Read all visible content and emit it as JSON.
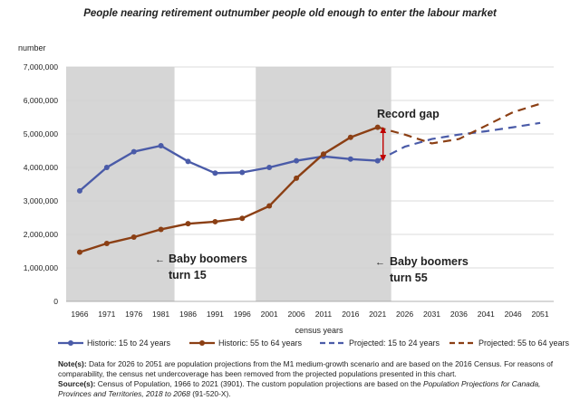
{
  "title": "People nearing retirement outnumber people old enough to enter the labour market",
  "chart_data": {
    "type": "line",
    "ylabel": "number",
    "xlabel": "census years",
    "ylim": [
      0,
      7000000
    ],
    "yticks": [
      0,
      1000000,
      2000000,
      3000000,
      4000000,
      5000000,
      6000000,
      7000000
    ],
    "ytick_labels": [
      "0",
      "1,000,000",
      "2,000,000",
      "3,000,000",
      "4,000,000",
      "5,000,000",
      "6,000,000",
      "7,000,000"
    ],
    "categories": [
      "1966",
      "1971",
      "1976",
      "1981",
      "1986",
      "1991",
      "1996",
      "2001",
      "2006",
      "2011",
      "2016",
      "2021",
      "2026",
      "2031",
      "2036",
      "2041",
      "2046",
      "2051"
    ],
    "shaded_ranges": [
      [
        "1966",
        "1981"
      ],
      [
        "2001",
        "2021"
      ]
    ],
    "series": [
      {
        "name": "Historic: 15 to 24 years",
        "color": "#4a5ba8",
        "dash": false,
        "x": [
          "1966",
          "1971",
          "1976",
          "1981",
          "1986",
          "1991",
          "1996",
          "2001",
          "2006",
          "2011",
          "2016",
          "2021"
        ],
        "values": [
          3300000,
          4000000,
          4470000,
          4650000,
          4180000,
          3830000,
          3850000,
          4000000,
          4200000,
          4330000,
          4250000,
          4200000
        ]
      },
      {
        "name": "Historic: 55 to 64 years",
        "color": "#8b3f14",
        "dash": false,
        "x": [
          "1966",
          "1971",
          "1976",
          "1981",
          "1986",
          "1991",
          "1996",
          "2001",
          "2006",
          "2011",
          "2016",
          "2021"
        ],
        "values": [
          1470000,
          1730000,
          1920000,
          2150000,
          2320000,
          2380000,
          2480000,
          2850000,
          3680000,
          4400000,
          4900000,
          5200000
        ]
      },
      {
        "name": "Projected: 15 to 24 years",
        "color": "#4a5ba8",
        "dash": true,
        "x": [
          "2021",
          "2026",
          "2031",
          "2036",
          "2041",
          "2046",
          "2051"
        ],
        "values": [
          4200000,
          4620000,
          4850000,
          4980000,
          5080000,
          5200000,
          5330000
        ]
      },
      {
        "name": "Projected: 55 to 64 years",
        "color": "#8b3f14",
        "dash": true,
        "x": [
          "2021",
          "2026",
          "2031",
          "2036",
          "2041",
          "2046",
          "2051"
        ],
        "values": [
          5200000,
          4980000,
          4720000,
          4850000,
          5250000,
          5650000,
          5900000
        ]
      }
    ],
    "annotations": {
      "record_gap": "Record gap",
      "boomers_15": [
        "Baby boomers",
        "turn 15"
      ],
      "boomers_55": [
        "Baby boomers",
        "turn 55"
      ],
      "arrow_left": "←"
    },
    "grid": "horizontal",
    "legend_position": "bottom"
  },
  "notes": {
    "note_label": "Note(s):",
    "note_text": " Data for 2026 to 2051 are population projections from the M1 medium-growth scenario and are based on the 2016 Census. For reasons of comparability, the census net undercoverage has been removed from the projected populations presented in this chart.",
    "source_label": "Source(s):",
    "source_text": " Census of Population, 1966 to 2021 (3901). The custom population projections are based on the ",
    "source_italic": "Population Projections for Canada, Provinces and Territories, 2018 to 2068",
    "source_tail": " (91-520-X)."
  }
}
